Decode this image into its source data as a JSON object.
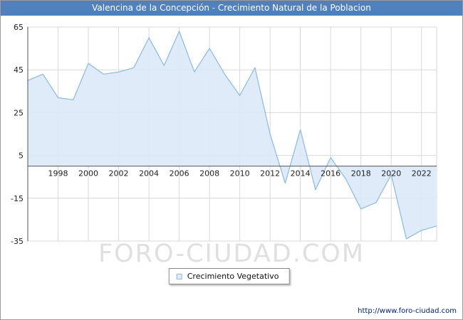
{
  "header": {
    "title": "Valencina de la Concepción - Crecimiento Natural de la Poblacion",
    "bg_color": "#4f81bd"
  },
  "watermark": "FORO-CIUDAD.COM",
  "legend": {
    "label": "Crecimiento Vegetativo"
  },
  "footer": {
    "url": "http://www.foro-ciudad.com"
  },
  "chart_data": {
    "type": "area",
    "title": "Valencina de la Concepción - Crecimiento Natural de la Poblacion",
    "series_name": "Crecimiento Vegetativo",
    "x": [
      1996,
      1997,
      1998,
      1999,
      2000,
      2001,
      2002,
      2003,
      2004,
      2005,
      2006,
      2007,
      2008,
      2009,
      2010,
      2011,
      2012,
      2013,
      2014,
      2015,
      2016,
      2017,
      2018,
      2019,
      2020,
      2021,
      2022,
      2023
    ],
    "values": [
      40,
      43,
      32,
      31,
      48,
      43,
      44,
      46,
      60,
      47,
      63,
      44,
      55,
      43,
      33,
      46,
      15,
      -8,
      17,
      -11,
      4,
      -6,
      -20,
      -17,
      -4,
      -34,
      -30,
      -28
    ],
    "baseline": 0,
    "ylim": [
      -35,
      65
    ],
    "yticks": [
      65,
      45,
      25,
      5,
      -15,
      -35
    ],
    "xticks": [
      1998,
      2000,
      2002,
      2004,
      2006,
      2008,
      2010,
      2012,
      2014,
      2016,
      2018,
      2020,
      2022
    ],
    "grid": true,
    "legend_position": "bottom-center",
    "colors": {
      "line": "#94bde0",
      "fill": "#dce9f7",
      "grid": "#d9d9d9",
      "axis": "#555555",
      "tick_text": "#222222"
    }
  }
}
